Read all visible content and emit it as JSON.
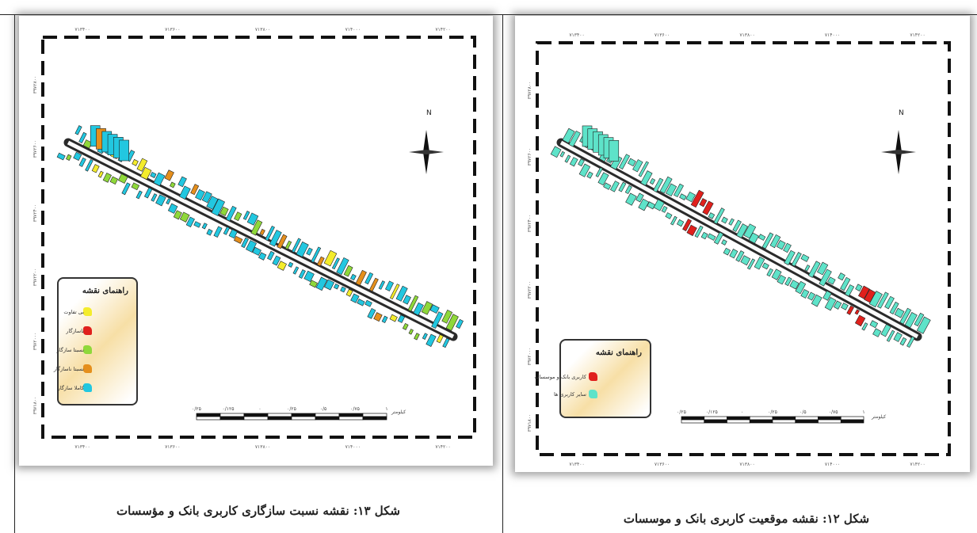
{
  "figures": [
    {
      "id": "left",
      "caption": "شکل ۱۳: نقشه نسبت سازگاری کاربری بانک و مؤسسات",
      "legend_title": "راهنمای نقشه",
      "legend_items": [
        {
          "label": "بی تفاوت",
          "color": "#f4ec2c",
          "icon": "yellow-swatch-icon"
        },
        {
          "label": "ناسازگار",
          "color": "#e0201c",
          "icon": "red-swatch-icon"
        },
        {
          "label": "نسبتا سازگار",
          "color": "#8fd83a",
          "icon": "green-swatch-icon"
        },
        {
          "label": "نسبتا ناسازگار",
          "color": "#e58f1c",
          "icon": "orange-swatch-icon"
        },
        {
          "label": "کاملا سازگار",
          "color": "#22c7e0",
          "icon": "cyan-swatch-icon"
        }
      ],
      "scale_unit": "کیلومتر",
      "scale_ticks": [
        "۰/۲۵",
        "۰/۱۲۵",
        "۰",
        "۰/۲۵",
        "۰/۵",
        "۰/۷۵",
        "۱"
      ],
      "north_label": "N",
      "coords_top": [
        "۷۱۳۴۰۰",
        "۷۱۳۶۰۰",
        "۷۱۳۸۰۰",
        "۷۱۴۰۰۰",
        "۷۱۴۲۰۰"
      ],
      "coords_bottom": [
        "۷۱۳۴۰۰",
        "۷۱۳۶۰۰",
        "۷۱۳۸۰۰",
        "۷۱۴۰۰۰",
        "۷۱۴۲۰۰"
      ],
      "coords_side": [
        "۳۹۷۲۸۰۰",
        "۳۹۷۲۶۰۰",
        "۳۹۷۲۴۰۰",
        "۳۹۷۲۲۰۰",
        "۳۹۷۲۰۰۰",
        "۳۹۷۱۸۰۰"
      ]
    },
    {
      "id": "right",
      "caption": "شکل ۱۲: نقشه موقعیت کاربری بانک و موسسات",
      "legend_title": "راهنمای نقشه",
      "legend_items": [
        {
          "label": "کاربری بانک و موسسات",
          "color": "#e0201c",
          "icon": "red-swatch-icon"
        },
        {
          "label": "سایر کاربری ها",
          "color": "#5ee3c9",
          "icon": "teal-swatch-icon"
        }
      ],
      "scale_unit": "کیلومتر",
      "scale_ticks": [
        "۰/۲۵",
        "۰/۱۲۵",
        "۰",
        "۰/۲۵",
        "۰/۵",
        "۰/۷۵",
        "۱"
      ],
      "north_label": "N",
      "coords_top": [
        "۷۱۳۴۰۰",
        "۷۱۳۶۰۰",
        "۷۱۳۸۰۰",
        "۷۱۴۰۰۰",
        "۷۱۴۲۰۰"
      ],
      "coords_bottom": [
        "۷۱۳۴۰۰",
        "۷۱۳۶۰۰",
        "۷۱۳۸۰۰",
        "۷۱۴۰۰۰",
        "۷۱۴۲۰۰"
      ],
      "coords_side": [
        "۳۹۷۲۸۰۰",
        "۳۹۷۲۶۰۰",
        "۳۹۷۲۴۰۰",
        "۳۹۷۲۲۰۰",
        "۳۹۷۲۰۰۰",
        "۳۹۷۱۸۰۰"
      ]
    }
  ]
}
